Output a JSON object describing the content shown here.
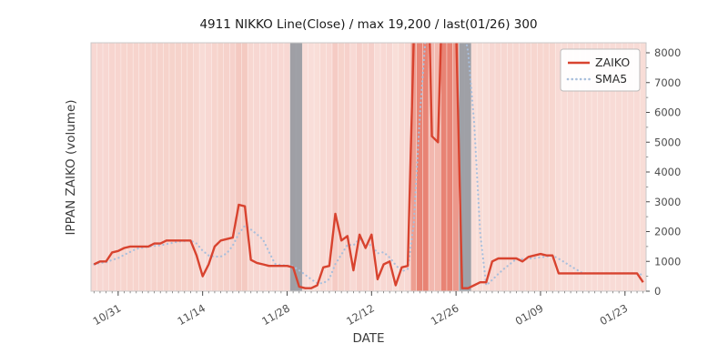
{
  "figure": {
    "title": "4911 NIKKO Line(Close) / max 19,200 / last(01/26) 300",
    "xlabel": "DATE",
    "ylabel": "IPPAN ZAIKO (volume)"
  },
  "legend": {
    "items": [
      {
        "label": "ZAIKO",
        "style": "solid",
        "color": "#d8432f"
      },
      {
        "label": "SMA5",
        "style": "dotted",
        "color": "#a9bfdc"
      }
    ]
  },
  "chart_data": {
    "type": "line",
    "title": "4911 NIKKO Line(Close) / max 19,200 / last(01/26) 300",
    "xlabel": "DATE",
    "ylabel": "IPPAN ZAIKO (volume)",
    "ylim": [
      0,
      8336
    ],
    "yticks": [
      0,
      1000,
      2000,
      3000,
      4000,
      5000,
      6000,
      7000,
      8000
    ],
    "xticks": [
      "10/31",
      "11/14",
      "11/28",
      "12/12",
      "12/26",
      "01/09",
      "01/23"
    ],
    "grid": false,
    "legend_position": "upper right",
    "max_annotation": {
      "max_value": 19200,
      "last_date": "01/26",
      "last_value": 300
    },
    "x": [
      "10/27",
      "10/28",
      "10/29",
      "10/30",
      "10/31",
      "11/01",
      "11/02",
      "11/03",
      "11/04",
      "11/05",
      "11/06",
      "11/07",
      "11/08",
      "11/09",
      "11/10",
      "11/11",
      "11/12",
      "11/13",
      "11/14",
      "11/15",
      "11/16",
      "11/17",
      "11/18",
      "11/19",
      "11/20",
      "11/21",
      "11/22",
      "11/23",
      "11/24",
      "11/25",
      "11/26",
      "11/27",
      "11/28",
      "11/29",
      "11/30",
      "12/01",
      "12/02",
      "12/03",
      "12/04",
      "12/05",
      "12/06",
      "12/07",
      "12/08",
      "12/09",
      "12/10",
      "12/11",
      "12/12",
      "12/13",
      "12/14",
      "12/15",
      "12/16",
      "12/17",
      "12/18",
      "12/19",
      "12/20",
      "12/21",
      "12/22",
      "12/23",
      "12/24",
      "12/25",
      "12/26",
      "12/27",
      "12/28",
      "12/29",
      "12/30",
      "12/31",
      "01/01",
      "01/02",
      "01/03",
      "01/04",
      "01/05",
      "01/06",
      "01/07",
      "01/08",
      "01/09",
      "01/10",
      "01/11",
      "01/12",
      "01/13",
      "01/14",
      "01/15",
      "01/16",
      "01/17",
      "01/18",
      "01/19",
      "01/20",
      "01/21",
      "01/22",
      "01/23",
      "01/24",
      "01/25",
      "01/26"
    ],
    "series": [
      {
        "name": "ZAIKO",
        "color": "#d8432f",
        "style": "solid",
        "width": 2.4,
        "values": [
          900,
          1000,
          1000,
          1300,
          1350,
          1450,
          1500,
          1500,
          1500,
          1500,
          1600,
          1600,
          1700,
          1700,
          1700,
          1700,
          1700,
          1200,
          500,
          900,
          1500,
          1700,
          1750,
          1800,
          2900,
          2850,
          1050,
          950,
          900,
          850,
          850,
          850,
          850,
          800,
          150,
          100,
          100,
          200,
          800,
          850,
          2600,
          1700,
          1850,
          700,
          1900,
          1450,
          1900,
          400,
          900,
          1000,
          200,
          800,
          850,
          8500,
          19200,
          14000,
          5200,
          5000,
          12000,
          19000,
          9000,
          100,
          100,
          200,
          300,
          300,
          1000,
          1100,
          1100,
          1100,
          1100,
          1000,
          1150,
          1200,
          1250,
          1200,
          1200,
          600,
          600,
          600,
          600,
          600,
          600,
          600,
          600,
          600,
          600,
          600,
          600,
          600,
          600,
          300
        ]
      },
      {
        "name": "SMA5",
        "color": "#a9bfdc",
        "style": "dotted",
        "width": 2.2,
        "derived": "moving_average_of_ZAIKO",
        "window": 5
      }
    ],
    "background": {
      "plot_bg": "#fdf4f1",
      "band_color": "#dd4a35",
      "band_alpha_base": 0.12,
      "band_alpha_scale": 0.55,
      "band_alpha_ref": 12000
    },
    "gray_bands": [
      {
        "from": "11/29",
        "to": "11/30"
      },
      {
        "from": "12/27",
        "to": "12/28"
      }
    ],
    "gray_band_color": "#8b929b"
  }
}
